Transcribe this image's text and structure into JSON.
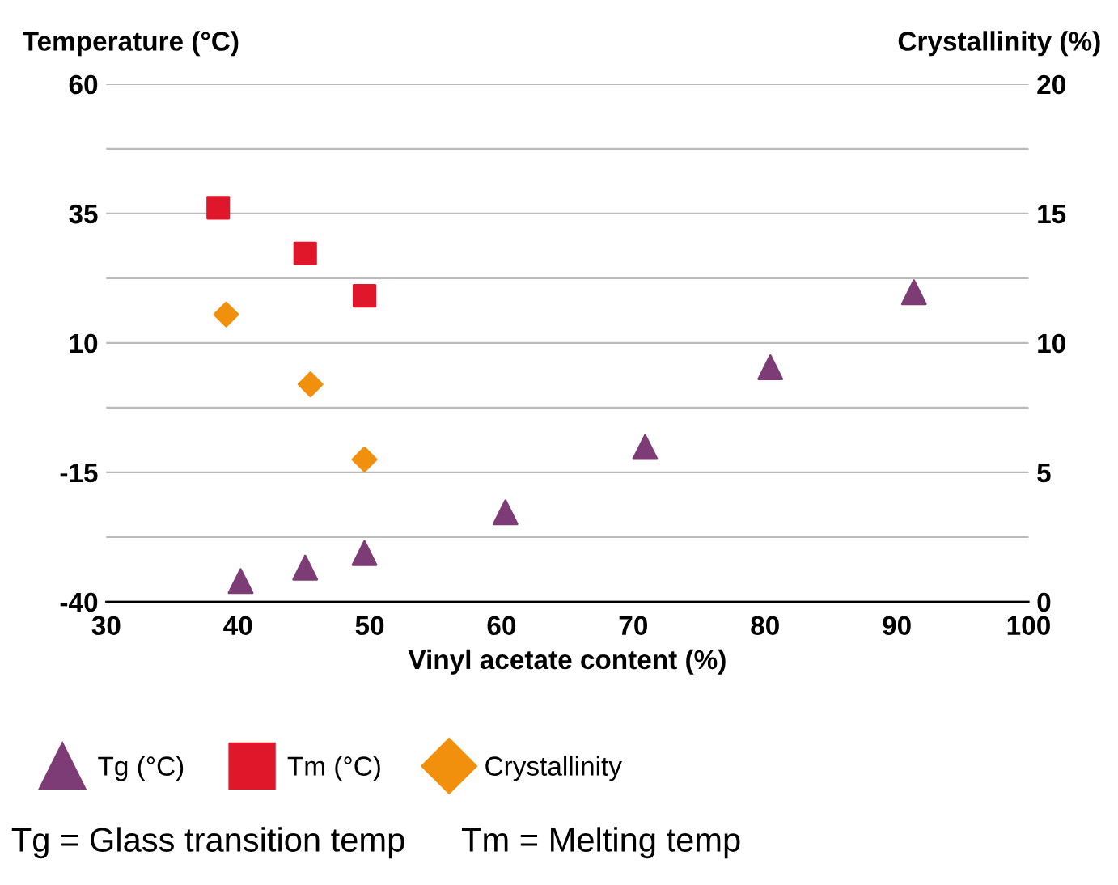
{
  "chart_data": {
    "type": "scatter",
    "xlabel": "Vinyl acetate content (%)",
    "ylabel": "Temperature (°C)",
    "y2label": "Crystallinity (%)",
    "xlim": [
      30,
      100
    ],
    "xticks": [
      30,
      40,
      50,
      60,
      70,
      80,
      90,
      100
    ],
    "ylim": [
      -40,
      60
    ],
    "yticks": [
      -40,
      {
        "value": -27.5,
        "label": null
      },
      -15,
      {
        "value": -2.5,
        "label": null
      },
      10,
      {
        "value": 22.5,
        "label": null
      },
      35,
      {
        "value": 47.5,
        "label": null
      },
      60
    ],
    "y2lim": [
      0,
      20
    ],
    "y2ticks": [
      0,
      5,
      10,
      15,
      20
    ],
    "grid": "y",
    "legend": "bottom",
    "series": [
      {
        "name": "Tg (°C)",
        "color": "#7d3c76",
        "marker": "triangle",
        "x": [
          40.2,
          45.1,
          49.6,
          60.3,
          70.9,
          80.4,
          91.3
        ],
        "values": [
          -36,
          -33.4,
          -30.6,
          -22.7,
          -10.1,
          5.3,
          19.8
        ]
      },
      {
        "name": "Tm (°C)",
        "color": "#e0162b",
        "marker": "square",
        "x": [
          38.5,
          45.1,
          49.6
        ],
        "values": [
          36.1,
          27.3,
          19.1
        ]
      },
      {
        "name": "Crystallinity",
        "color": "#f0900c",
        "marker": "diamond",
        "axis": "y2",
        "x": [
          39.1,
          45.5,
          49.6
        ],
        "values": [
          11.1,
          8.4,
          5.5
        ]
      }
    ],
    "annotations": [
      "Tg = Glass transition temp      Tm = Melting temp"
    ]
  }
}
